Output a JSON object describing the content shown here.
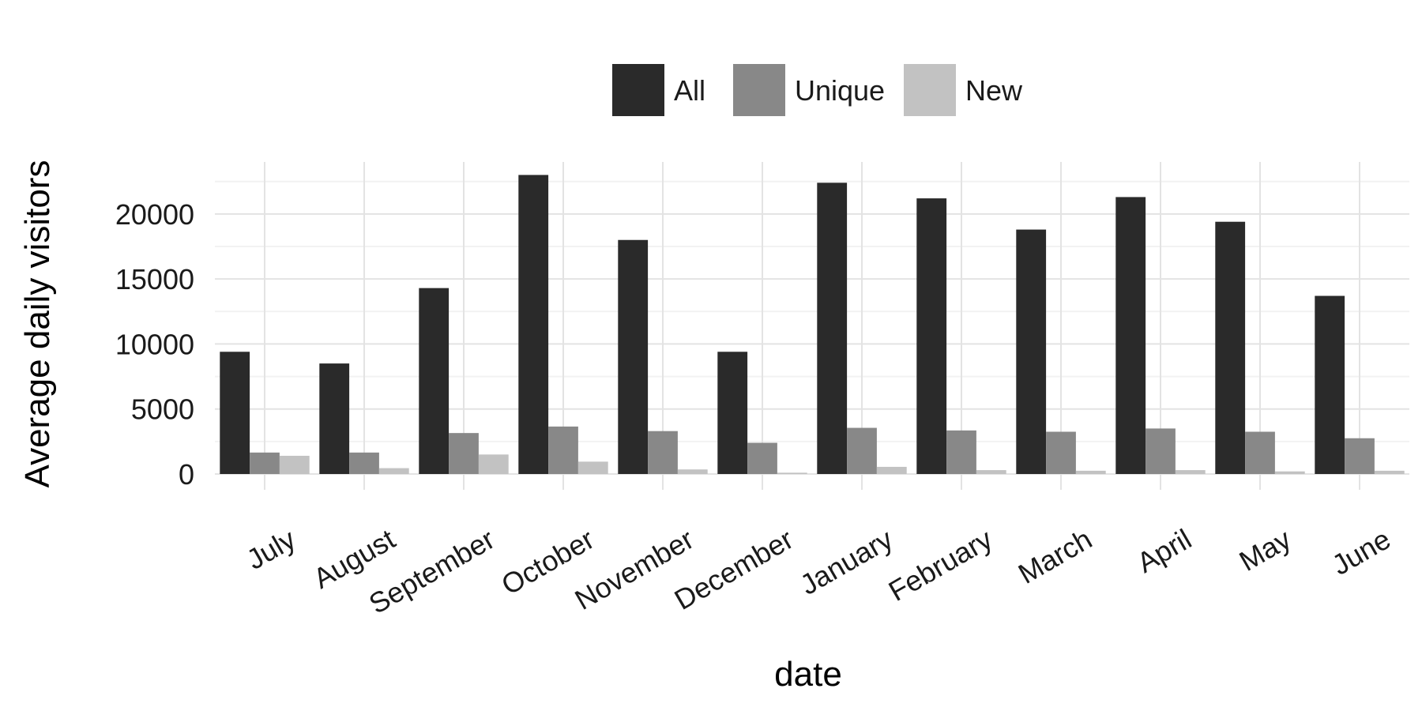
{
  "chart_data": {
    "type": "bar",
    "title": "",
    "xlabel": "date",
    "ylabel": "Average daily visitors",
    "categories": [
      "July",
      "August",
      "September",
      "October",
      "November",
      "December",
      "January",
      "February",
      "March",
      "April",
      "May",
      "June"
    ],
    "series": [
      {
        "name": "All",
        "color": "#2a2a2a",
        "values": [
          9400,
          8500,
          14300,
          23000,
          18000,
          9400,
          22400,
          21200,
          18800,
          21300,
          19400,
          13700
        ]
      },
      {
        "name": "Unique",
        "color": "#888888",
        "values": [
          1650,
          1650,
          3150,
          3650,
          3300,
          2400,
          3550,
          3350,
          3250,
          3500,
          3250,
          2750
        ]
      },
      {
        "name": "New",
        "color": "#c2c2c2",
        "values": [
          1400,
          450,
          1500,
          950,
          350,
          100,
          550,
          300,
          250,
          300,
          200,
          250
        ]
      }
    ],
    "yticks": [
      0,
      5000,
      10000,
      15000,
      20000
    ],
    "ylim": [
      0,
      24000
    ],
    "grid": true,
    "legend_position": "top"
  }
}
